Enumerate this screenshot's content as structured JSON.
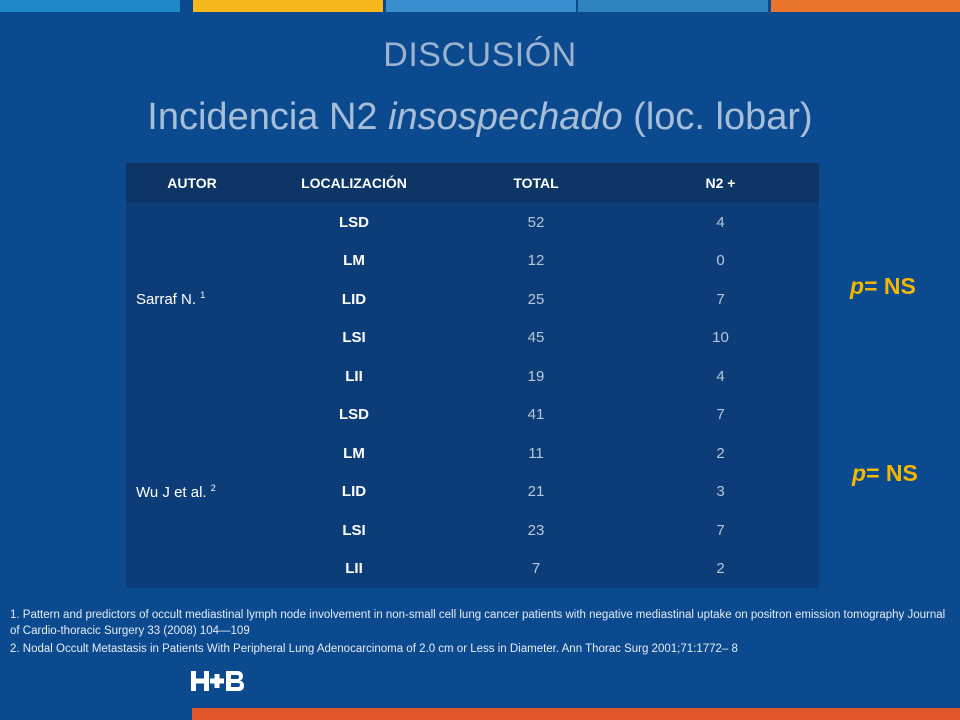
{
  "title": "DISCUSIÓN",
  "subtitle": {
    "part1": "Incidencia N2 ",
    "italic": "insospechado",
    "part2": " (loc. lobar)"
  },
  "table": {
    "headers": [
      "AUTOR",
      "LOCALIZACIÓN",
      "TOTAL",
      "N2 +"
    ],
    "groups": [
      {
        "author": "Sarraf N.",
        "ref": "1",
        "rows": [
          {
            "loc": "LSD",
            "total": "52",
            "n2": "4"
          },
          {
            "loc": "LM",
            "total": "12",
            "n2": "0"
          },
          {
            "loc": "LID",
            "total": "25",
            "n2": "7"
          },
          {
            "loc": "LSI",
            "total": "45",
            "n2": "10"
          },
          {
            "loc": "LII",
            "total": "19",
            "n2": "4"
          }
        ]
      },
      {
        "author": "Wu J et al.",
        "ref": "2",
        "rows": [
          {
            "loc": "LSD",
            "total": "41",
            "n2": "7"
          },
          {
            "loc": "LM",
            "total": "11",
            "n2": "2"
          },
          {
            "loc": "LID",
            "total": "21",
            "n2": "3"
          },
          {
            "loc": "LSI",
            "total": "23",
            "n2": "7"
          },
          {
            "loc": "LII",
            "total": "7",
            "n2": "2"
          }
        ]
      }
    ]
  },
  "pvalues": [
    {
      "p": "p",
      "rest": "= NS"
    },
    {
      "p": "p",
      "rest": "= NS"
    }
  ],
  "references": [
    "1. Pattern and predictors of occult mediastinal lymph node involvement in non-small cell lung cancer patients with negative mediastinal uptake on positron emission tomography Journal of Cardio-thoracic Surgery 33 (2008) 104—109",
    "2. Nodal Occult Metastasis in Patients With Peripheral Lung Adenocarcinoma of 2.0 cm or Less in Diameter. Ann Thorac Surg 2001;71:1772– 8"
  ],
  "logo_text": "H+B",
  "colors": {
    "background": "#0b4a8f",
    "table_header": "#0d3566",
    "table_body": "#0d3d78",
    "accent_yellow": "#f5b800",
    "bottom_bar": "#e2562b",
    "top_bar": [
      "#1e88c8",
      "#f6b81c",
      "#3a8ed0",
      "#2f84c0",
      "#e9742b"
    ]
  }
}
